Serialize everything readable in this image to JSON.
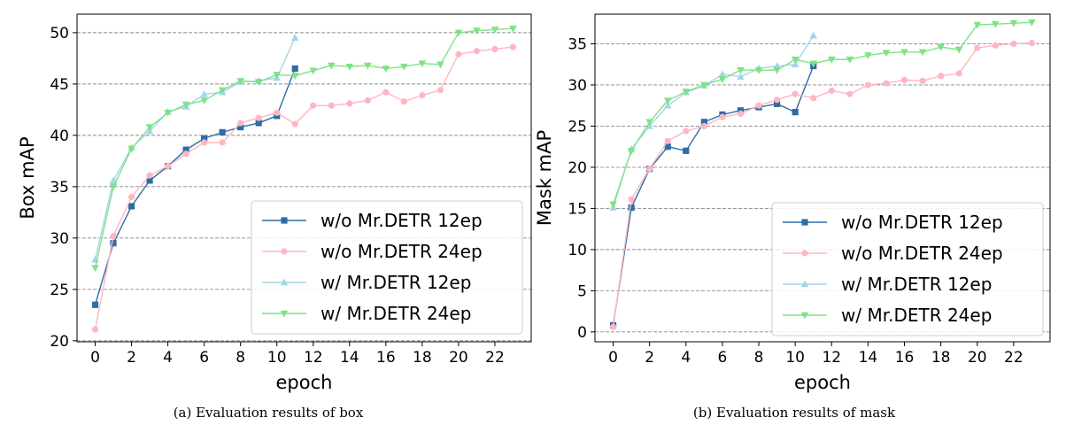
{
  "figure": {
    "captions": [
      "(a) Evaluation results of box",
      "(b) Evaluation results of mask"
    ]
  },
  "chart_data": [
    {
      "type": "line",
      "title": "",
      "xlabel": "epoch",
      "ylabel": "Box mAP",
      "xlim": [
        -1,
        24
      ],
      "ylim": [
        19.9,
        51.8
      ],
      "xticks": [
        0,
        2,
        4,
        6,
        8,
        10,
        12,
        14,
        16,
        18,
        20,
        22
      ],
      "yticks": [
        20,
        25,
        30,
        35,
        40,
        45,
        50
      ],
      "grid": "horizontal dashed",
      "legend_position": "bottom-right",
      "series": [
        {
          "name": "w/o Mr.DETR 12ep",
          "color": "#2e6da4",
          "marker": "square",
          "x": [
            0,
            1,
            2,
            3,
            4,
            5,
            6,
            7,
            8,
            9,
            10,
            11
          ],
          "y": [
            23.5,
            29.5,
            33.1,
            35.6,
            37.0,
            38.6,
            39.7,
            40.3,
            40.8,
            41.2,
            41.9,
            46.5
          ]
        },
        {
          "name": "w/o Mr.DETR 24ep",
          "color": "#ffb6c1",
          "marker": "circle",
          "x": [
            0,
            1,
            2,
            3,
            4,
            5,
            6,
            7,
            8,
            9,
            10,
            11,
            12,
            13,
            14,
            15,
            16,
            17,
            18,
            19,
            20,
            21,
            22,
            23
          ],
          "y": [
            21.1,
            30.2,
            34.0,
            36.1,
            37.0,
            38.2,
            39.3,
            39.3,
            41.2,
            41.7,
            42.2,
            41.1,
            42.9,
            42.9,
            43.1,
            43.4,
            44.2,
            43.3,
            43.9,
            44.4,
            47.9,
            48.2,
            48.4,
            48.6
          ]
        },
        {
          "name": "w/ Mr.DETR 12ep",
          "color": "#a6d5ea",
          "marker": "triangle-up",
          "x": [
            0,
            1,
            2,
            3,
            4,
            5,
            6,
            7,
            8,
            9,
            10,
            11
          ],
          "y": [
            27.9,
            35.6,
            38.8,
            40.4,
            42.3,
            42.8,
            44.0,
            44.2,
            45.2,
            45.3,
            45.6,
            49.5
          ]
        },
        {
          "name": "w/ Mr.DETR 24ep",
          "color": "#7de383",
          "marker": "triangle-down",
          "x": [
            0,
            1,
            2,
            3,
            4,
            5,
            6,
            7,
            8,
            9,
            10,
            11,
            12,
            13,
            14,
            15,
            16,
            17,
            18,
            19,
            20,
            21,
            22,
            23
          ],
          "y": [
            27.1,
            35.0,
            38.7,
            40.8,
            42.2,
            43.0,
            43.4,
            44.4,
            45.3,
            45.2,
            45.9,
            45.8,
            46.3,
            46.8,
            46.7,
            46.8,
            46.5,
            46.7,
            47.0,
            46.9,
            50.0,
            50.2,
            50.3,
            50.4
          ]
        }
      ]
    },
    {
      "type": "line",
      "title": "",
      "xlabel": "epoch",
      "ylabel": "Mask mAP",
      "xlim": [
        -1,
        24
      ],
      "ylim": [
        -1.2,
        38.6
      ],
      "xticks": [
        0,
        2,
        4,
        6,
        8,
        10,
        12,
        14,
        16,
        18,
        20,
        22
      ],
      "yticks": [
        0,
        5,
        10,
        15,
        20,
        25,
        30,
        35
      ],
      "grid": "horizontal dashed",
      "legend_position": "bottom-right",
      "series": [
        {
          "name": "w/o Mr.DETR 12ep",
          "color": "#2e6da4",
          "marker": "square",
          "x": [
            0,
            1,
            2,
            3,
            4,
            5,
            6,
            7,
            8,
            9,
            10,
            11
          ],
          "y": [
            0.8,
            15.1,
            19.8,
            22.5,
            22.0,
            25.5,
            26.4,
            26.9,
            27.3,
            27.7,
            26.7,
            32.3
          ]
        },
        {
          "name": "w/o Mr.DETR 24ep",
          "color": "#ffb6c1",
          "marker": "circle",
          "x": [
            0,
            1,
            2,
            3,
            4,
            5,
            6,
            7,
            8,
            9,
            10,
            11,
            12,
            13,
            14,
            15,
            16,
            17,
            18,
            19,
            20,
            21,
            22,
            23
          ],
          "y": [
            0.6,
            16.1,
            19.8,
            23.2,
            24.4,
            25.0,
            26.1,
            26.5,
            27.5,
            28.2,
            28.9,
            28.4,
            29.3,
            28.9,
            30.0,
            30.2,
            30.6,
            30.5,
            31.1,
            31.4,
            34.5,
            34.8,
            35.0,
            35.1
          ]
        },
        {
          "name": "w/ Mr.DETR 12ep",
          "color": "#a6d5ea",
          "marker": "triangle-up",
          "x": [
            0,
            1,
            2,
            3,
            4,
            5,
            6,
            7,
            8,
            9,
            10,
            11
          ],
          "y": [
            15.1,
            22.2,
            25.0,
            27.5,
            29.1,
            29.9,
            31.3,
            31.0,
            32.0,
            32.3,
            32.5,
            36.0
          ]
        },
        {
          "name": "w/ Mr.DETR 24ep",
          "color": "#7de383",
          "marker": "triangle-down",
          "x": [
            0,
            1,
            2,
            3,
            4,
            5,
            6,
            7,
            8,
            9,
            10,
            11,
            12,
            13,
            14,
            15,
            16,
            17,
            18,
            19,
            20,
            21,
            22,
            23
          ],
          "y": [
            15.5,
            22.0,
            25.5,
            28.1,
            29.2,
            30.0,
            30.7,
            31.8,
            31.8,
            31.8,
            33.1,
            32.6,
            33.1,
            33.1,
            33.6,
            33.9,
            34.0,
            34.0,
            34.6,
            34.3,
            37.3,
            37.4,
            37.5,
            37.6
          ]
        }
      ]
    }
  ]
}
